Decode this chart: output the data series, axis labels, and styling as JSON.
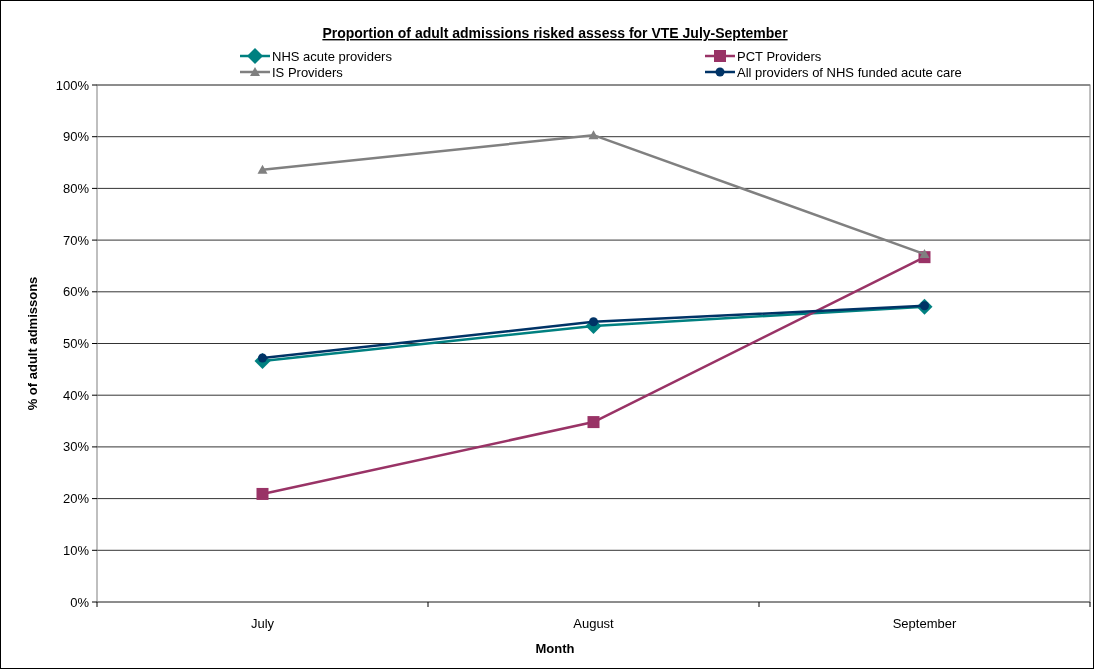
{
  "chart_data": {
    "type": "line",
    "title": "Proportion of adult admissions risked assess for VTE July-September",
    "xlabel": "Month",
    "ylabel": "% of adult admissons",
    "categories": [
      "July",
      "August",
      "September"
    ],
    "series": [
      {
        "name": "NHS acute providers",
        "color": "#008080",
        "marker": "diamond",
        "values": [
          46.6,
          53.4,
          57.1
        ]
      },
      {
        "name": "PCT Providers",
        "color": "#993366",
        "marker": "square",
        "values": [
          20.9,
          34.8,
          66.7
        ]
      },
      {
        "name": "IS Providers",
        "color": "#808080",
        "marker": "triangle",
        "values": [
          83.6,
          90.3,
          67.3
        ]
      },
      {
        "name": "All providers of NHS funded acute care",
        "color": "#003366",
        "marker": "circle",
        "values": [
          47.2,
          54.2,
          57.3
        ]
      }
    ],
    "ylim": [
      0,
      100
    ],
    "yticks": [
      {
        "value": 0,
        "label": "0%"
      },
      {
        "value": 10,
        "label": "10%"
      },
      {
        "value": 20,
        "label": "20%"
      },
      {
        "value": 30,
        "label": "30%"
      },
      {
        "value": 40,
        "label": "40%"
      },
      {
        "value": 50,
        "label": "50%"
      },
      {
        "value": 60,
        "label": "60%"
      },
      {
        "value": 70,
        "label": "70%"
      },
      {
        "value": 80,
        "label": "80%"
      },
      {
        "value": 90,
        "label": "90%"
      },
      {
        "value": 100,
        "label": "100%"
      }
    ],
    "grid": "y",
    "legend": "top",
    "line_style": "solid"
  }
}
